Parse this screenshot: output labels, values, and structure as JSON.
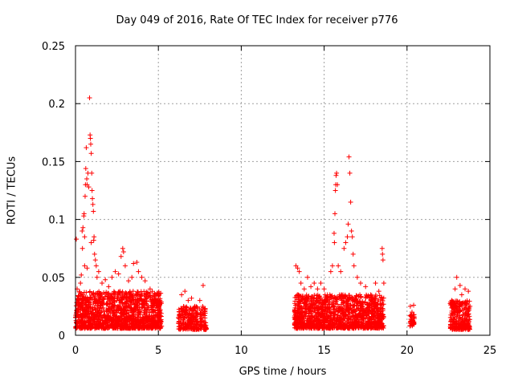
{
  "chart_data": {
    "type": "scatter",
    "title": "Day 049 of 2016, Rate Of TEC Index for receiver p776",
    "xlabel": "GPS time / hours",
    "ylabel": "ROTI / TECUs",
    "xlim": [
      0,
      25
    ],
    "ylim": [
      0,
      0.25
    ],
    "xticks": [
      "0",
      "5",
      "10",
      "15",
      "20",
      "25"
    ],
    "yticks": [
      "0",
      "0.05",
      "0.1",
      "0.15",
      "0.2",
      "0.25"
    ],
    "grid": true,
    "marker": "+",
    "series": [
      {
        "name": "ROTI",
        "color": "#ff0000",
        "points": [
          [
            0.05,
            0.083
          ],
          [
            0.1,
            0.04
          ],
          [
            0.2,
            0.03
          ],
          [
            0.3,
            0.045
          ],
          [
            0.35,
            0.052
          ],
          [
            0.4,
            0.09
          ],
          [
            0.42,
            0.075
          ],
          [
            0.45,
            0.093
          ],
          [
            0.5,
            0.103
          ],
          [
            0.52,
            0.105
          ],
          [
            0.55,
            0.085
          ],
          [
            0.58,
            0.12
          ],
          [
            0.6,
            0.13
          ],
          [
            0.62,
            0.144
          ],
          [
            0.65,
            0.162
          ],
          [
            0.68,
            0.135
          ],
          [
            0.7,
            0.13
          ],
          [
            0.75,
            0.14
          ],
          [
            0.8,
            0.128
          ],
          [
            0.85,
            0.205
          ],
          [
            0.88,
            0.173
          ],
          [
            0.9,
            0.17
          ],
          [
            0.92,
            0.165
          ],
          [
            0.95,
            0.157
          ],
          [
            0.98,
            0.14
          ],
          [
            1.0,
            0.125
          ],
          [
            1.02,
            0.118
          ],
          [
            1.05,
            0.113
          ],
          [
            1.08,
            0.107
          ],
          [
            1.1,
            0.082
          ],
          [
            1.12,
            0.085
          ],
          [
            1.15,
            0.07
          ],
          [
            1.2,
            0.065
          ],
          [
            1.25,
            0.06
          ],
          [
            1.3,
            0.05
          ],
          [
            0.95,
            0.08
          ],
          [
            0.55,
            0.06
          ],
          [
            0.7,
            0.058
          ],
          [
            1.4,
            0.055
          ],
          [
            1.6,
            0.045
          ],
          [
            1.8,
            0.048
          ],
          [
            2.0,
            0.042
          ],
          [
            2.2,
            0.05
          ],
          [
            2.4,
            0.055
          ],
          [
            2.6,
            0.053
          ],
          [
            2.75,
            0.068
          ],
          [
            2.85,
            0.075
          ],
          [
            2.9,
            0.072
          ],
          [
            3.0,
            0.06
          ],
          [
            3.2,
            0.047
          ],
          [
            3.4,
            0.05
          ],
          [
            3.5,
            0.062
          ],
          [
            3.7,
            0.063
          ],
          [
            3.8,
            0.055
          ],
          [
            4.0,
            0.05
          ],
          [
            4.2,
            0.047
          ],
          [
            4.5,
            0.04
          ],
          [
            4.8,
            0.03
          ],
          [
            5.0,
            0.025
          ],
          [
            5.1,
            0.02
          ],
          [
            6.4,
            0.035
          ],
          [
            6.6,
            0.038
          ],
          [
            6.8,
            0.03
          ],
          [
            7.0,
            0.032
          ],
          [
            7.2,
            0.025
          ],
          [
            7.5,
            0.03
          ],
          [
            7.7,
            0.043
          ],
          [
            13.3,
            0.06
          ],
          [
            13.4,
            0.058
          ],
          [
            13.5,
            0.055
          ],
          [
            13.6,
            0.045
          ],
          [
            13.8,
            0.04
          ],
          [
            14.0,
            0.05
          ],
          [
            14.2,
            0.042
          ],
          [
            14.4,
            0.045
          ],
          [
            14.6,
            0.04
          ],
          [
            14.8,
            0.045
          ],
          [
            15.0,
            0.04
          ],
          [
            15.2,
            0.035
          ],
          [
            15.4,
            0.055
          ],
          [
            15.5,
            0.06
          ],
          [
            15.6,
            0.088
          ],
          [
            15.62,
            0.08
          ],
          [
            15.65,
            0.105
          ],
          [
            15.68,
            0.125
          ],
          [
            15.7,
            0.13
          ],
          [
            15.72,
            0.138
          ],
          [
            15.75,
            0.14
          ],
          [
            15.8,
            0.13
          ],
          [
            15.85,
            0.06
          ],
          [
            16.0,
            0.055
          ],
          [
            16.2,
            0.075
          ],
          [
            16.3,
            0.08
          ],
          [
            16.4,
            0.085
          ],
          [
            16.45,
            0.096
          ],
          [
            16.5,
            0.154
          ],
          [
            16.55,
            0.14
          ],
          [
            16.6,
            0.115
          ],
          [
            16.65,
            0.09
          ],
          [
            16.7,
            0.085
          ],
          [
            16.75,
            0.07
          ],
          [
            16.8,
            0.06
          ],
          [
            17.0,
            0.05
          ],
          [
            17.2,
            0.045
          ],
          [
            17.5,
            0.042
          ],
          [
            17.8,
            0.035
          ],
          [
            18.1,
            0.045
          ],
          [
            18.3,
            0.038
          ],
          [
            18.5,
            0.075
          ],
          [
            18.52,
            0.07
          ],
          [
            18.55,
            0.065
          ],
          [
            18.6,
            0.045
          ],
          [
            20.2,
            0.025
          ],
          [
            20.3,
            0.02
          ],
          [
            20.35,
            0.012
          ],
          [
            20.4,
            0.026
          ],
          [
            22.7,
            0.03
          ],
          [
            22.8,
            0.025
          ],
          [
            22.9,
            0.04
          ],
          [
            23.0,
            0.05
          ],
          [
            23.2,
            0.043
          ],
          [
            23.3,
            0.035
          ],
          [
            23.5,
            0.04
          ],
          [
            23.7,
            0.038
          ],
          [
            23.8,
            0.025
          ]
        ]
      }
    ],
    "dense_bands": [
      {
        "x_start": 0.0,
        "x_end": 5.2,
        "y_low": 0.006,
        "y_high": 0.038,
        "count": 1300
      },
      {
        "x_start": 6.2,
        "x_end": 7.9,
        "y_low": 0.005,
        "y_high": 0.025,
        "count": 260
      },
      {
        "x_start": 13.2,
        "x_end": 18.6,
        "y_low": 0.006,
        "y_high": 0.035,
        "count": 1300
      },
      {
        "x_start": 20.15,
        "x_end": 20.45,
        "y_low": 0.008,
        "y_high": 0.018,
        "count": 35
      },
      {
        "x_start": 22.6,
        "x_end": 23.8,
        "y_low": 0.005,
        "y_high": 0.03,
        "count": 260
      }
    ]
  }
}
